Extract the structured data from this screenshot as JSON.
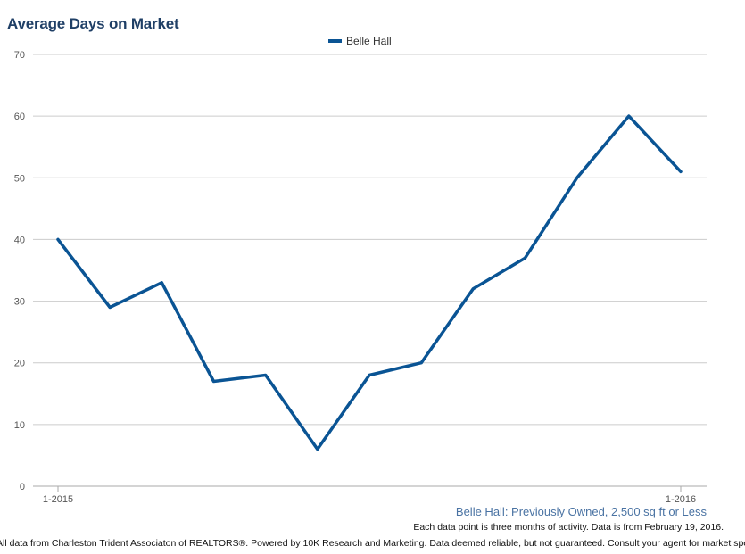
{
  "title": "Average Days on Market",
  "subtitle": "Belle Hall: Previously Owned, 2,500 sq ft or Less",
  "note": "Each data point is three months of activity. Data is from February 19, 2016.",
  "footer": "All data from Charleston Trident Associaton of REALTORS®. Powered by 10K Research and Marketing. Data deemed reliable, but not guaranteed. Consult your agent for market specifics.",
  "colors": {
    "series": "#0a5494",
    "title": "#1f3f66",
    "grid": "#cccccc"
  },
  "chart_data": {
    "type": "line",
    "x_tick_labels": [
      {
        "index": 0,
        "label": "1-2015"
      },
      {
        "index": 12,
        "label": "1-2016"
      }
    ],
    "ylim": [
      0,
      70
    ],
    "y_ticks": [
      0,
      10,
      20,
      30,
      40,
      50,
      60,
      70
    ],
    "grid": true,
    "legend_position": "top-center",
    "series": [
      {
        "name": "Belle Hall",
        "values": [
          40,
          29,
          33,
          17,
          18,
          6,
          18,
          20,
          32,
          37,
          50,
          60,
          51
        ]
      }
    ]
  }
}
